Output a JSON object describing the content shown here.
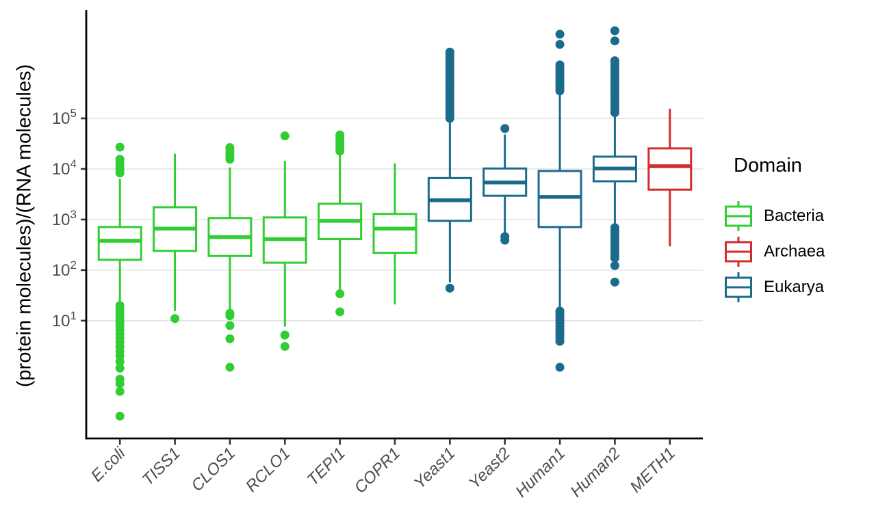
{
  "axes": {
    "y_title": "(protein molecules)/(RNA molecules)",
    "y_tick_base": "10",
    "y_tick_exponents": [
      5,
      4,
      3,
      2,
      1
    ]
  },
  "legend": {
    "title": "Domain",
    "items": [
      {
        "label": "Bacteria",
        "color": "#32CD32"
      },
      {
        "label": "Archaea",
        "color": "#D42B2B"
      },
      {
        "label": "Eukarya",
        "color": "#1B6B8D"
      }
    ]
  },
  "style": {
    "gridline_color": "#E4E4E4",
    "axis_color": "#000000",
    "tick_color": "#333333",
    "tick_label_color": "#4d4d4d",
    "box_fill": "#ffffff"
  },
  "chart_data": {
    "type": "boxplot",
    "y_scale": "log10",
    "ylim": [
      0.047,
      13700000
    ],
    "grid": true,
    "grid_decades": [
      1,
      2,
      3,
      4,
      5
    ],
    "legend_position": "right",
    "xlabel": "",
    "ylabel": "(protein molecules)/(RNA molecules)",
    "categories": [
      "E.coli",
      "TISS1",
      "CLOS1",
      "RCLO1",
      "TEPI1",
      "COPR1",
      "Yeast1",
      "Yeast2",
      "Human1",
      "Human2",
      "METH1"
    ],
    "series": [
      {
        "label": "E.coli",
        "domain": "Bacteria",
        "stats": {
          "whisker_low": 22,
          "q1": 160,
          "median": 380,
          "q3": 710,
          "whisker_high": 6300
        },
        "outliers": [
          8300,
          9700,
          11300,
          13200,
          15500,
          27000,
          20,
          17,
          14.5,
          12.5,
          10.5,
          9.0,
          7.8,
          6.6,
          5.5,
          4.6,
          3.8,
          3.1,
          2.5,
          2.0,
          1.55,
          1.15,
          0.7,
          0.57,
          0.4,
          0.13
        ]
      },
      {
        "label": "TISS1",
        "domain": "Bacteria",
        "stats": {
          "whisker_low": 15.5,
          "q1": 240,
          "median": 660,
          "q3": 1750,
          "whisker_high": 20000
        },
        "outliers": [
          11
        ]
      },
      {
        "label": "CLOS1",
        "domain": "Bacteria",
        "stats": {
          "whisker_low": 17,
          "q1": 190,
          "median": 450,
          "q3": 1070,
          "whisker_high": 10700
        },
        "outliers": [
          15500,
          17500,
          20000,
          23000,
          26500,
          14,
          12.5,
          8.0,
          4.4,
          1.2
        ]
      },
      {
        "label": "RCLO1",
        "domain": "Bacteria",
        "stats": {
          "whisker_low": 7.6,
          "q1": 140,
          "median": 410,
          "q3": 1100,
          "whisker_high": 14500
        },
        "outliers": [
          45000,
          5.2,
          3.1
        ]
      },
      {
        "label": "TEPI1",
        "domain": "Bacteria",
        "stats": {
          "whisker_low": 37,
          "q1": 410,
          "median": 940,
          "q3": 2050,
          "whisker_high": 18700
        },
        "outliers": [
          22500,
          26000,
          30500,
          35500,
          41500,
          47000,
          34,
          15
        ]
      },
      {
        "label": "COPR1",
        "domain": "Bacteria",
        "stats": {
          "whisker_low": 21,
          "q1": 220,
          "median": 660,
          "q3": 1290,
          "whisker_high": 12900
        },
        "outliers": []
      },
      {
        "label": "Yeast1",
        "domain": "Eukarya",
        "stats": {
          "whisker_low": 57,
          "q1": 940,
          "median": 2400,
          "q3": 6600,
          "whisker_high": 91000
        },
        "outliers": [
          100000,
          114000,
          130000,
          148000,
          169000,
          193000,
          220000,
          251000,
          286000,
          326000,
          372000,
          424000,
          483000,
          551000,
          628000,
          716000,
          816000,
          930000,
          1060000,
          1209000,
          1378000,
          1571000,
          1791000,
          2042000,
          44
        ]
      },
      {
        "label": "Yeast2",
        "domain": "Eukarya",
        "stats": {
          "whisker_low": 550,
          "q1": 2950,
          "median": 5400,
          "q3": 10200,
          "whisker_high": 48000
        },
        "outliers": [
          63000,
          460,
          390
        ]
      },
      {
        "label": "Human1",
        "domain": "Eukarya",
        "stats": {
          "whisker_low": 18,
          "q1": 710,
          "median": 2800,
          "q3": 9100,
          "whisker_high": 330000
        },
        "outliers": [
          350000,
          399000,
          455000,
          519000,
          592000,
          675000,
          769000,
          877000,
          1000000,
          1140000,
          2900000,
          4600000,
          15.5,
          13.5,
          11.8,
          10.3,
          9.0,
          7.8,
          6.8,
          5.9,
          5.1,
          4.4,
          3.9,
          1.2
        ]
      },
      {
        "label": "Human2",
        "domain": "Eukarya",
        "stats": {
          "whisker_low": 810,
          "q1": 5700,
          "median": 10200,
          "q3": 17500,
          "whisker_high": 110000
        },
        "outliers": [
          130000,
          148000,
          169000,
          193000,
          220000,
          251000,
          286000,
          326000,
          372000,
          424000,
          483000,
          551000,
          628000,
          716000,
          816000,
          930000,
          1060000,
          1209000,
          1378000,
          3400000,
          5400000,
          690,
          600,
          520,
          455,
          395,
          345,
          300,
          260,
          228,
          198,
          173,
          123,
          58
        ]
      },
      {
        "label": "METH1",
        "domain": "Archaea",
        "stats": {
          "whisker_low": 295,
          "q1": 3900,
          "median": 11300,
          "q3": 25500,
          "whisker_high": 155000
        },
        "outliers": []
      }
    ]
  }
}
